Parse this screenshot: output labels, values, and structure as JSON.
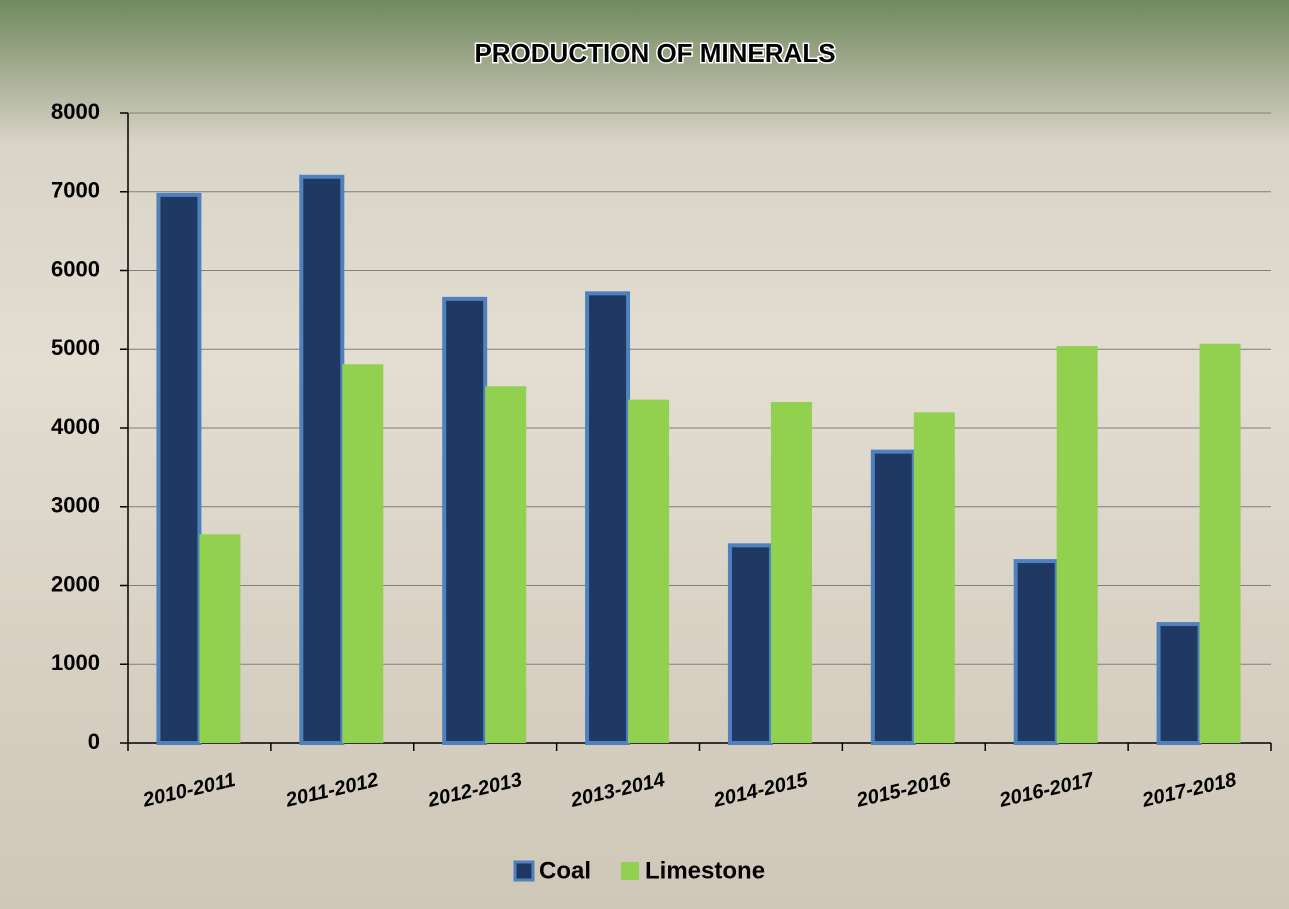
{
  "chart_data": {
    "type": "bar",
    "title": "PRODUCTION OF MINERALS",
    "categories": [
      "2010-2011",
      "2011-2012",
      "2012-2013",
      "2013-2014",
      "2014-2015",
      "2015-2016",
      "2016-2017",
      "2017-2018"
    ],
    "series": [
      {
        "name": "Coal",
        "color": "#1f3864",
        "values": [
          6960,
          7190,
          5640,
          5710,
          2510,
          3700,
          2310,
          1510
        ]
      },
      {
        "name": "Limestone",
        "color": "#92d050",
        "values": [
          2650,
          4810,
          4530,
          4360,
          4330,
          4200,
          5040,
          5070
        ]
      }
    ],
    "ylim": [
      0,
      8000
    ],
    "yticks": [
      0,
      1000,
      2000,
      3000,
      4000,
      5000,
      6000,
      7000,
      8000
    ],
    "grid": true,
    "legend": "bottom"
  }
}
